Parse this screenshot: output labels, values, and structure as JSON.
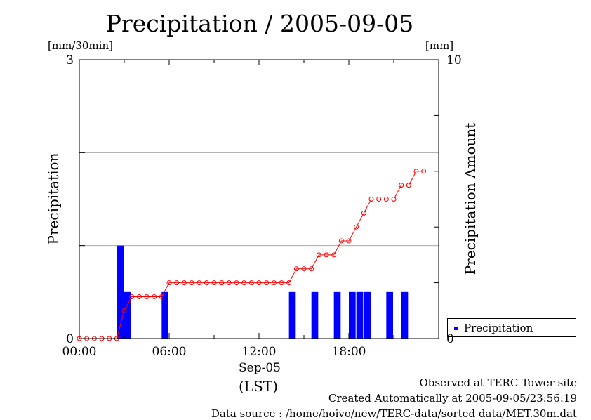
{
  "title": "Precipitation / 2005-09-05",
  "units": {
    "left": "[mm/30min]",
    "right": "[mm]"
  },
  "legend": {
    "label": "Precipitation"
  },
  "axis_labels": {
    "date": "Sep-05",
    "timezone": "(LST)"
  },
  "footer": {
    "observed": "Observed at TERC Tower site",
    "created": "Created Automatically at 2005-09-05/23:56:19",
    "source": "Data source : /home/hoivo/new/TERC-data/sorted  data/MET.30m.dat"
  },
  "colors": {
    "bars": "#0000ff",
    "line": "#ff0000",
    "grid": "#aaaaaa"
  },
  "chart_data": {
    "type": "bar",
    "title": "Precipitation / 2005-09-05",
    "xlabel": "Sep-05 (LST)",
    "x_ticks": [
      "00:00",
      "06:00",
      "12:00",
      "18:00"
    ],
    "x_tick_hours": [
      0,
      6,
      12,
      18
    ],
    "xlim": [
      0,
      24
    ],
    "grid": true,
    "legend_position": "right",
    "series": [
      {
        "name": "Precipitation",
        "type": "bar",
        "axis": "left",
        "ylabel": "Precipitation",
        "unit": "[mm/30min]",
        "ylim": [
          0,
          3
        ],
        "y_ticks": [
          "0",
          "3"
        ],
        "bars": [
          {
            "start": 2.5,
            "value": 1.0
          },
          {
            "start": 3.0,
            "value": 0.5
          },
          {
            "start": 5.5,
            "value": 0.5
          },
          {
            "start": 14.0,
            "value": 0.5
          },
          {
            "start": 15.5,
            "value": 0.5
          },
          {
            "start": 17.0,
            "value": 0.5
          },
          {
            "start": 18.0,
            "value": 0.5
          },
          {
            "start": 18.5,
            "value": 0.5
          },
          {
            "start": 19.0,
            "value": 0.5
          },
          {
            "start": 20.5,
            "value": 0.5
          },
          {
            "start": 21.5,
            "value": 0.5
          }
        ]
      },
      {
        "name": "Precipitation Amount",
        "type": "line",
        "axis": "right",
        "ylabel": "Precipitation Amount",
        "unit": "[mm]",
        "ylim": [
          0,
          10
        ],
        "y_ticks": [
          "0",
          "10"
        ],
        "x": [
          0,
          0.5,
          1,
          1.5,
          2,
          2.5,
          3,
          3.5,
          4,
          4.5,
          5,
          5.5,
          6,
          6.5,
          7,
          7.5,
          8,
          8.5,
          9,
          9.5,
          10,
          10.5,
          11,
          11.5,
          12,
          12.5,
          13,
          13.5,
          14,
          14.5,
          15,
          15.5,
          16,
          16.5,
          17,
          17.5,
          18,
          18.5,
          19,
          19.5,
          20,
          20.5,
          21,
          21.5,
          22,
          22.5,
          23
        ],
        "values": [
          0,
          0,
          0,
          0,
          0,
          0,
          1.0,
          1.5,
          1.5,
          1.5,
          1.5,
          1.5,
          2.0,
          2.0,
          2.0,
          2.0,
          2.0,
          2.0,
          2.0,
          2.0,
          2.0,
          2.0,
          2.0,
          2.0,
          2.0,
          2.0,
          2.0,
          2.0,
          2.0,
          2.5,
          2.5,
          2.5,
          3.0,
          3.0,
          3.0,
          3.5,
          3.5,
          4.0,
          4.5,
          5.0,
          5.0,
          5.0,
          5.0,
          5.5,
          5.5,
          6.0,
          6.0
        ]
      }
    ]
  }
}
